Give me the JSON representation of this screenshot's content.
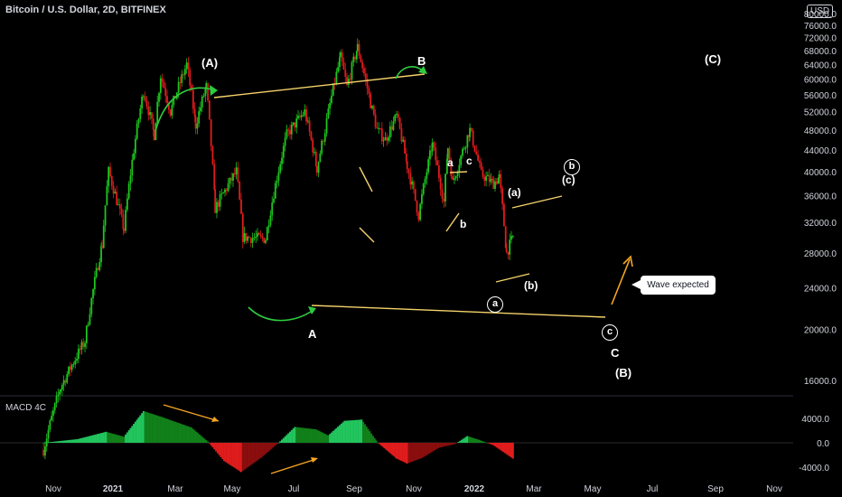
{
  "header": {
    "symbol": "Bitcoin / U.S. Dollar, 2D, BITFINEX",
    "currency": "USD"
  },
  "indicator": {
    "label": "MACD 4C"
  },
  "callout": {
    "text": "Wave expected"
  },
  "colors": {
    "up": "#1ec51e",
    "down": "#e01c1c",
    "trendline": "#f5d36b",
    "arrow": "#f5a623",
    "wave_arrow": "#2ecc40",
    "background": "#000000",
    "axis_text": "#d1d4dc"
  },
  "annotations": {
    "wave_A_paren": "(A)",
    "wave_B": "B",
    "wave_C_paren": "(C)",
    "wave_A": "A",
    "wave_C": "C",
    "wave_B_paren": "(B)",
    "sub_a": "a",
    "sub_b": "b",
    "sub_c": "c",
    "minor_a_paren": "(a)",
    "minor_b_paren": "(b)",
    "minor_c_paren": "(c)",
    "circ_a": "a",
    "circ_b": "b",
    "circ_c": "c"
  },
  "chart_data": [
    {
      "type": "candlestick",
      "title": "Bitcoin / U.S. Dollar, 2D, BITFINEX",
      "x_ticks": [
        "Nov",
        "2021",
        "Mar",
        "May",
        "Jul",
        "Sep",
        "Nov",
        "2022",
        "Mar",
        "May",
        "Jul",
        "Sep",
        "Nov"
      ],
      "y_ticks": [
        16000,
        20000,
        24000,
        28000,
        32000,
        36000,
        40000,
        44000,
        48000,
        52000,
        56000,
        60000,
        64000,
        68000,
        72000,
        76000,
        80000
      ],
      "y_tick_labels": [
        "16000.0",
        "20000.0",
        "24000.0",
        "28000.0",
        "32000.0",
        "36000.0",
        "40000.0",
        "44000.0",
        "48000.0",
        "52000.0",
        "56000.0",
        "60000.0",
        "64000.0",
        "68000.0",
        "72000.0",
        "76000.0",
        "80000.0"
      ],
      "ylim": [
        14500,
        82000
      ],
      "price_path": [
        [
          "2020-10-20",
          11800
        ],
        [
          "2020-11-10",
          15500
        ],
        [
          "2020-12-10",
          19000
        ],
        [
          "2020-12-31",
          29000
        ],
        [
          "2021-01-08",
          40000
        ],
        [
          "2021-01-27",
          31000
        ],
        [
          "2021-02-20",
          57000
        ],
        [
          "2021-03-05",
          47000
        ],
        [
          "2021-03-13",
          61000
        ],
        [
          "2021-03-25",
          52000
        ],
        [
          "2021-04-14",
          64000
        ],
        [
          "2021-04-25",
          49000
        ],
        [
          "2021-05-08",
          58000
        ],
        [
          "2021-05-19",
          34000
        ],
        [
          "2021-06-14",
          40000
        ],
        [
          "2021-06-22",
          30000
        ],
        [
          "2021-07-20",
          29800
        ],
        [
          "2021-08-15",
          47000
        ],
        [
          "2021-09-06",
          52000
        ],
        [
          "2021-09-21",
          40500
        ],
        [
          "2021-10-01",
          48000
        ],
        [
          "2021-10-20",
          66000
        ],
        [
          "2021-10-28",
          58000
        ],
        [
          "2021-11-10",
          69000
        ],
        [
          "2021-11-26",
          54000
        ],
        [
          "2021-12-04",
          48000
        ],
        [
          "2021-12-14",
          46000
        ],
        [
          "2021-12-28",
          51000
        ],
        [
          "2022-01-10",
          41000
        ],
        [
          "2022-01-24",
          33000
        ],
        [
          "2022-02-10",
          45000
        ],
        [
          "2022-02-24",
          35000
        ],
        [
          "2022-03-01",
          44500
        ],
        [
          "2022-03-07",
          38000
        ],
        [
          "2022-03-28",
          48000
        ],
        [
          "2022-04-11",
          39500
        ],
        [
          "2022-04-26",
          38000
        ],
        [
          "2022-05-03",
          39000
        ],
        [
          "2022-05-12",
          28000
        ],
        [
          "2022-05-20",
          30000
        ]
      ],
      "wave_labels": [
        "(A)",
        "B",
        "(C)",
        "A",
        "C",
        "(B)",
        "a",
        "b",
        "c",
        "(a)",
        "(b)",
        "(c)"
      ]
    },
    {
      "type": "bar",
      "title": "MACD 4C",
      "y_ticks": [
        4000,
        0,
        -4000
      ],
      "y_tick_labels": [
        "4000.0",
        "0.0",
        "-4000.0"
      ],
      "ylim": [
        -5000,
        5000
      ],
      "histogram_path": [
        [
          "2020-10-20",
          0
        ],
        [
          "2020-12-01",
          600
        ],
        [
          "2021-01-05",
          1800
        ],
        [
          "2021-01-27",
          1000
        ],
        [
          "2021-02-20",
          5200
        ],
        [
          "2021-03-15",
          4200
        ],
        [
          "2021-04-20",
          2500
        ],
        [
          "2021-05-10",
          200
        ],
        [
          "2021-05-30",
          -3000
        ],
        [
          "2021-06-20",
          -4800
        ],
        [
          "2021-07-15",
          -2400
        ],
        [
          "2021-08-05",
          0
        ],
        [
          "2021-08-25",
          2600
        ],
        [
          "2021-09-20",
          2200
        ],
        [
          "2021-10-05",
          1200
        ],
        [
          "2021-10-25",
          3600
        ],
        [
          "2021-11-15",
          3800
        ],
        [
          "2021-12-05",
          0
        ],
        [
          "2021-12-28",
          -2600
        ],
        [
          "2022-01-10",
          -3400
        ],
        [
          "2022-01-28",
          -2500
        ],
        [
          "2022-02-18",
          -800
        ],
        [
          "2022-03-10",
          -200
        ],
        [
          "2022-03-25",
          1100
        ],
        [
          "2022-04-08",
          500
        ],
        [
          "2022-04-26",
          -400
        ],
        [
          "2022-05-20",
          -2600
        ]
      ]
    }
  ]
}
